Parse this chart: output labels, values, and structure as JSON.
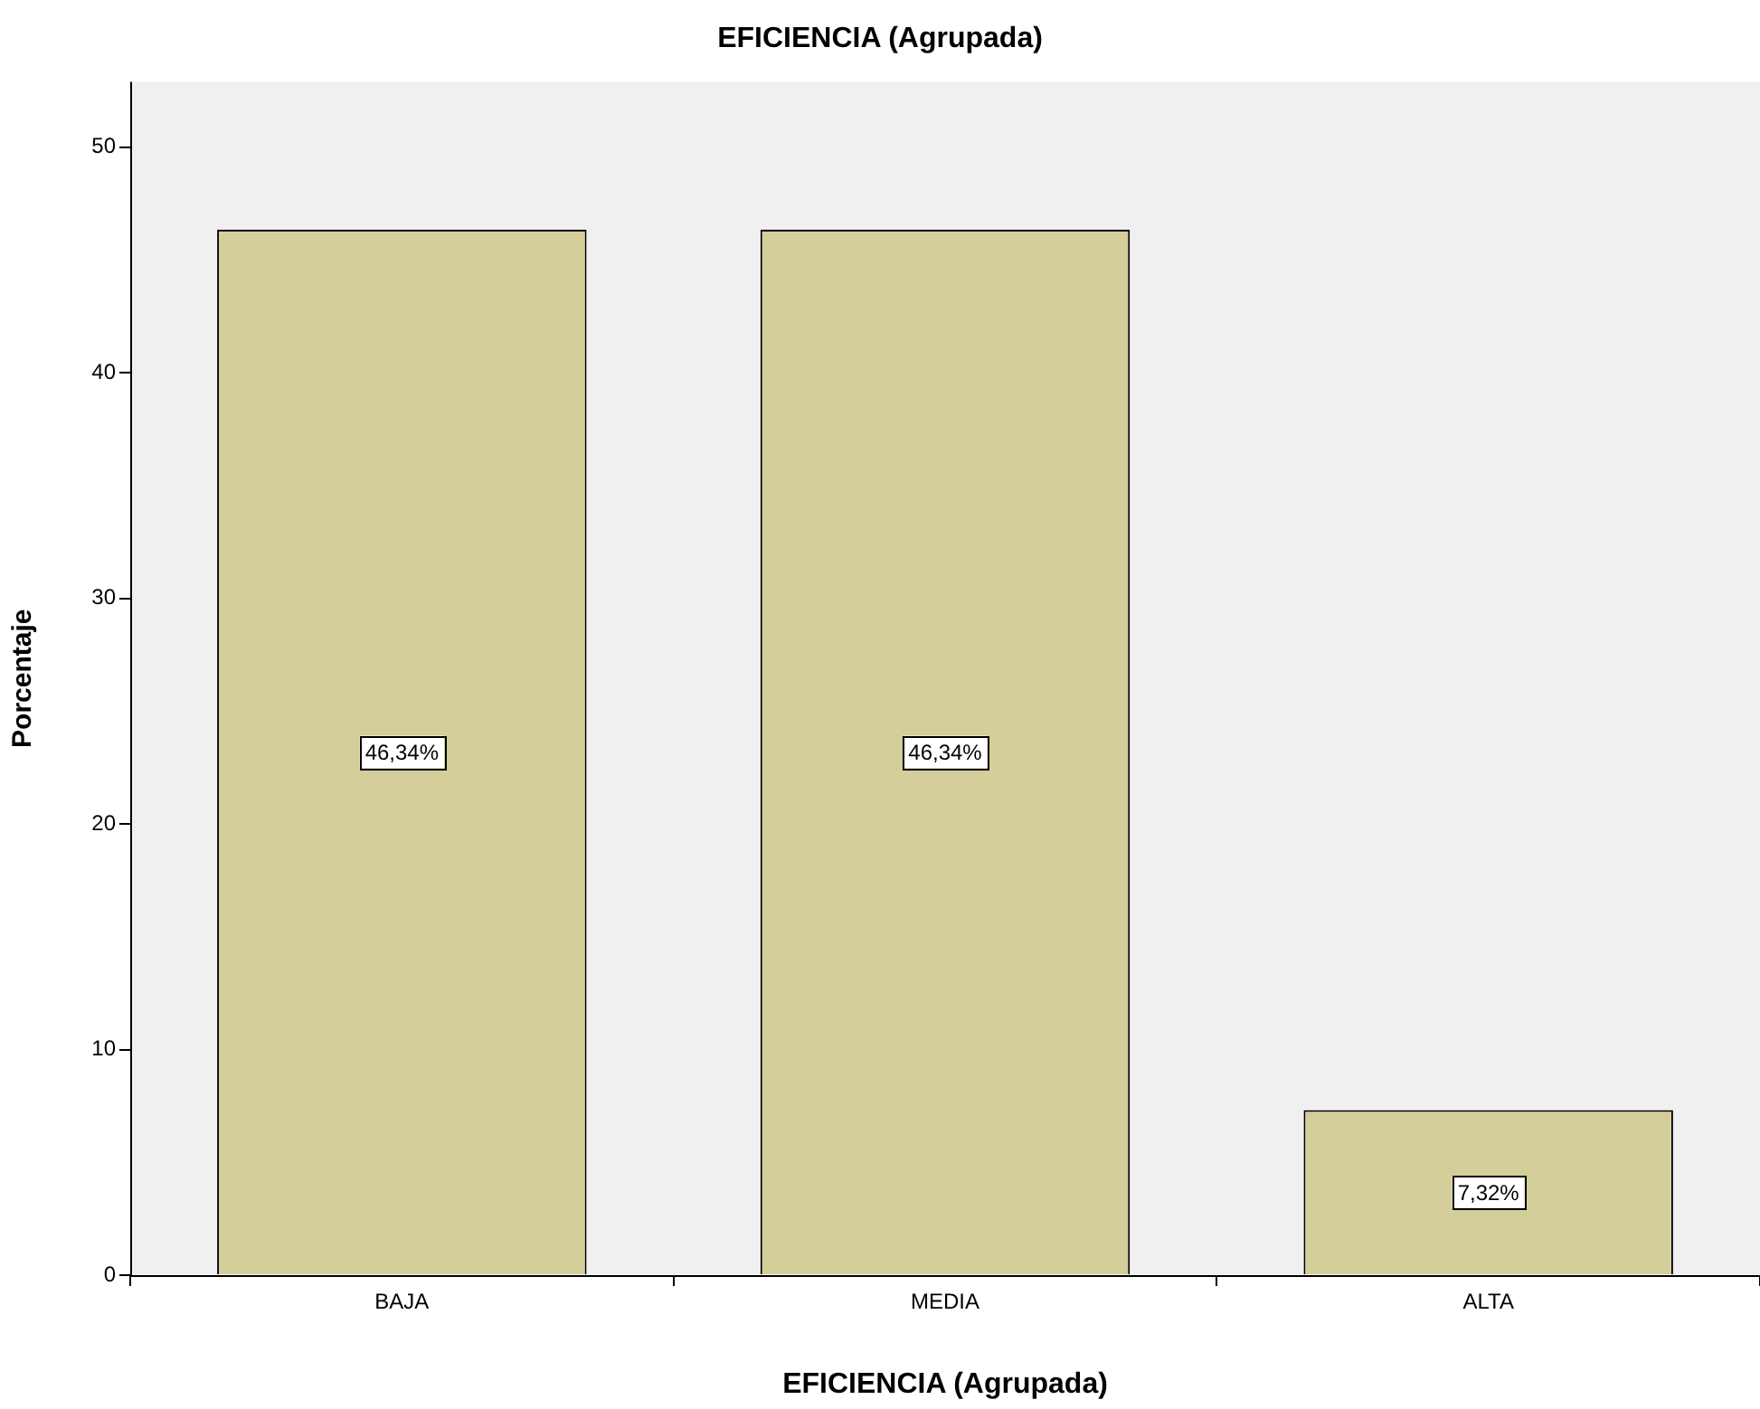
{
  "chart_data": {
    "type": "bar",
    "title": "EFICIENCIA (Agrupada)",
    "xlabel": "EFICIENCIA (Agrupada)",
    "ylabel": "Porcentaje",
    "categories": [
      "BAJA",
      "MEDIA",
      "ALTA"
    ],
    "values": [
      46.34,
      46.34,
      7.32
    ],
    "value_labels": [
      "46,34%",
      "46,34%",
      "7,32%"
    ],
    "color": "#d3ce9a",
    "ylim": [
      0,
      52.9
    ],
    "yticks": [
      0,
      10,
      20,
      30,
      40,
      50
    ],
    "grid": false,
    "legend": false
  }
}
